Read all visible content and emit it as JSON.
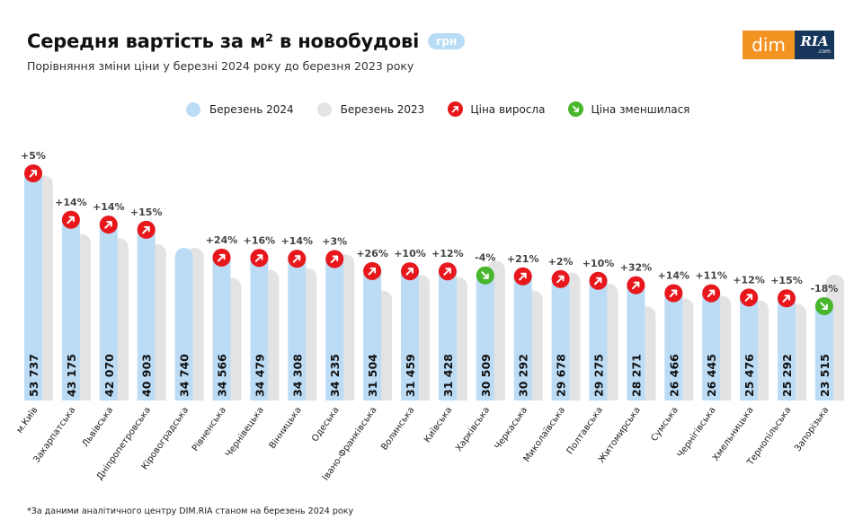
{
  "header": {
    "title": "Середня вартість за м² в новобудові",
    "unit_badge": "грн",
    "subtitle": "Порівняння зміни ціни у березні 2024 року до березня 2023 року"
  },
  "logo": {
    "left": "dim",
    "right": "RIA",
    "right_suffix": ".com"
  },
  "legend": {
    "series_2024": "Березень 2024",
    "series_2023": "Березень 2023",
    "price_up": "Ціна виросла",
    "price_down": "Ціна зменшилася"
  },
  "colors": {
    "bar_2024": "#bcdcf6",
    "bar_2023": "#e3e3e3",
    "up": "#e8171c",
    "down": "#47b62a",
    "badge": "#b9dcf6",
    "logo_dim": "#f39322",
    "logo_ria": "#16365c"
  },
  "chart_data": {
    "type": "bar",
    "categories": [
      "м.Київ",
      "Закарпатська",
      "Львівська",
      "Дніпропетровська",
      "Кіровоградська",
      "Рівненська",
      "Чернівецька",
      "Вінницька",
      "Одеська",
      "Івано-Франківська",
      "Волинська",
      "Київська",
      "Харківська",
      "Черкаська",
      "Миколаївська",
      "Полтавська",
      "Житомирська",
      "Сумська",
      "Чернігівська",
      "Хмельницька",
      "Тернопільська",
      "Запорізька"
    ],
    "series": [
      {
        "name": "Березень 2024",
        "values": [
          53737,
          43175,
          42070,
          40903,
          34740,
          34566,
          34479,
          34308,
          34235,
          31504,
          31459,
          31428,
          30509,
          30292,
          29678,
          29275,
          28271,
          26466,
          26445,
          25476,
          25292,
          23515
        ]
      },
      {
        "name": "Березень 2023",
        "values": [
          51178,
          37873,
          36904,
          35568,
          34740,
          27876,
          29723,
          30095,
          33238,
          25003,
          28599,
          28061,
          31780,
          25035,
          29096,
          26614,
          21418,
          23216,
          23824,
          22746,
          21993,
          28677
        ]
      }
    ],
    "value_labels": [
      "53 737",
      "43 175",
      "42 070",
      "40 903",
      "34 740",
      "34 566",
      "34 479",
      "34 308",
      "34 235",
      "31 504",
      "31 459",
      "31 428",
      "30 509",
      "30 292",
      "29 678",
      "29 275",
      "28 271",
      "26 466",
      "26 445",
      "25 476",
      "25 292",
      "23 515"
    ],
    "change_labels": [
      "+5%",
      "+14%",
      "+14%",
      "+15%",
      "",
      "+24%",
      "+16%",
      "+14%",
      "+3%",
      "+26%",
      "+10%",
      "+12%",
      "-4%",
      "+21%",
      "+2%",
      "+10%",
      "+32%",
      "+14%",
      "+11%",
      "+12%",
      "+15%",
      "-18%"
    ],
    "directions": [
      "up",
      "up",
      "up",
      "up",
      "none",
      "up",
      "up",
      "up",
      "up",
      "up",
      "up",
      "up",
      "down",
      "up",
      "up",
      "up",
      "up",
      "up",
      "up",
      "up",
      "up",
      "down"
    ],
    "ylim": [
      0,
      56000
    ],
    "grid": false,
    "legend_position": "top-center"
  },
  "footnote": "*За даними аналітичного центру DIM.RIA станом на березень 2024 року"
}
